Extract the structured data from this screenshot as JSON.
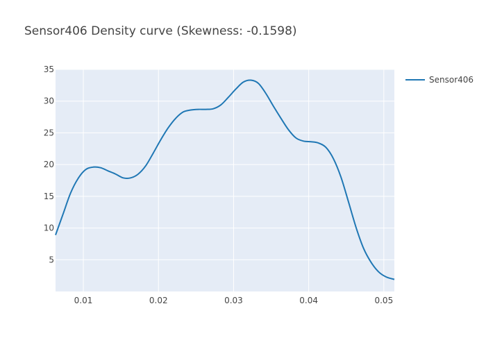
{
  "chart_data": {
    "type": "line",
    "title": "Sensor406 Density curve (Skewness: -0.1598)",
    "xlabel": "",
    "ylabel": "",
    "xlim": [
      0.0063,
      0.0514
    ],
    "ylim": [
      0,
      35
    ],
    "x_ticks": [
      0.01,
      0.02,
      0.03,
      0.04,
      0.05
    ],
    "x_tick_labels": [
      "0.01",
      "0.02",
      "0.03",
      "0.04",
      "0.05"
    ],
    "y_ticks": [
      5,
      10,
      15,
      20,
      25,
      30,
      35
    ],
    "y_tick_labels": [
      "5",
      "10",
      "15",
      "20",
      "25",
      "30",
      "35"
    ],
    "grid": true,
    "legend_position": "top-right",
    "series": [
      {
        "name": "Sensor406",
        "color": "#1f77b4",
        "x": [
          0.0063,
          0.0073,
          0.0083,
          0.0093,
          0.0103,
          0.0113,
          0.0123,
          0.0133,
          0.0143,
          0.0153,
          0.0163,
          0.0173,
          0.0183,
          0.0193,
          0.0203,
          0.0213,
          0.0223,
          0.0233,
          0.0243,
          0.0253,
          0.0263,
          0.0273,
          0.0283,
          0.0293,
          0.0303,
          0.0313,
          0.0323,
          0.0333,
          0.0343,
          0.0353,
          0.0363,
          0.0373,
          0.0383,
          0.0393,
          0.0403,
          0.0413,
          0.0423,
          0.0433,
          0.0443,
          0.0453,
          0.0463,
          0.0473,
          0.0483,
          0.0493,
          0.0503,
          0.0514
        ],
        "y": [
          8.9,
          12.2,
          15.5,
          17.8,
          19.2,
          19.6,
          19.5,
          19.0,
          18.5,
          17.9,
          17.9,
          18.5,
          19.8,
          21.8,
          23.9,
          25.8,
          27.3,
          28.3,
          28.6,
          28.7,
          28.7,
          28.8,
          29.4,
          30.6,
          31.9,
          33.0,
          33.3,
          32.8,
          31.2,
          29.2,
          27.3,
          25.5,
          24.2,
          23.7,
          23.6,
          23.4,
          22.7,
          20.9,
          18.0,
          14.1,
          10.1,
          6.8,
          4.6,
          3.1,
          2.3,
          1.9
        ]
      }
    ]
  }
}
